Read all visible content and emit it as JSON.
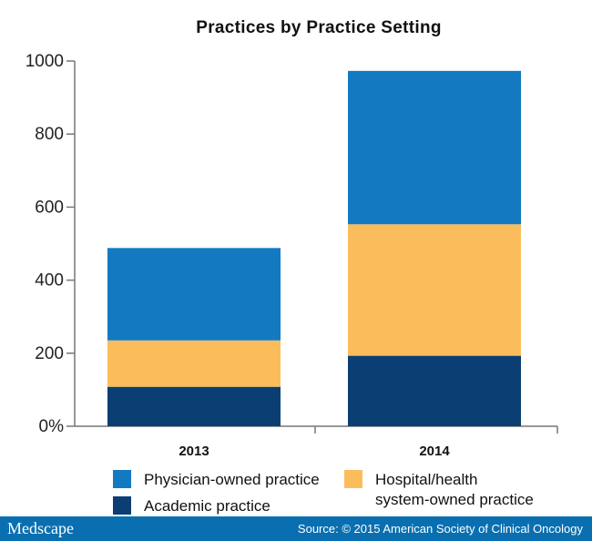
{
  "chart_data": {
    "type": "bar",
    "stacked": true,
    "title": "Practices by Practice Setting",
    "categories": [
      "2013",
      "2014"
    ],
    "series": [
      {
        "name": "Academic practice",
        "values": [
          108,
          193
        ],
        "color": "#0b3f73"
      },
      {
        "name": "Hospital/health system-owned practice",
        "values": [
          127,
          360
        ],
        "color": "#fbbd5c"
      },
      {
        "name": "Physician-owned  practice",
        "values": [
          253,
          420
        ],
        "color": "#137ac2"
      }
    ],
    "y_ticks": [
      "0%",
      "200",
      "400",
      "600",
      "800",
      "1000"
    ],
    "ylim": [
      0,
      1000
    ],
    "grid": false,
    "legend_position": "bottom"
  },
  "legend": {
    "physician": "Physician-owned  practice",
    "hospital_line1": "Hospital/health",
    "hospital_line2": "system-owned practice",
    "academic": "Academic practice"
  },
  "footer": {
    "brand": "Medscape",
    "source": "Source: © 2015 American Society of Clinical Oncology"
  }
}
